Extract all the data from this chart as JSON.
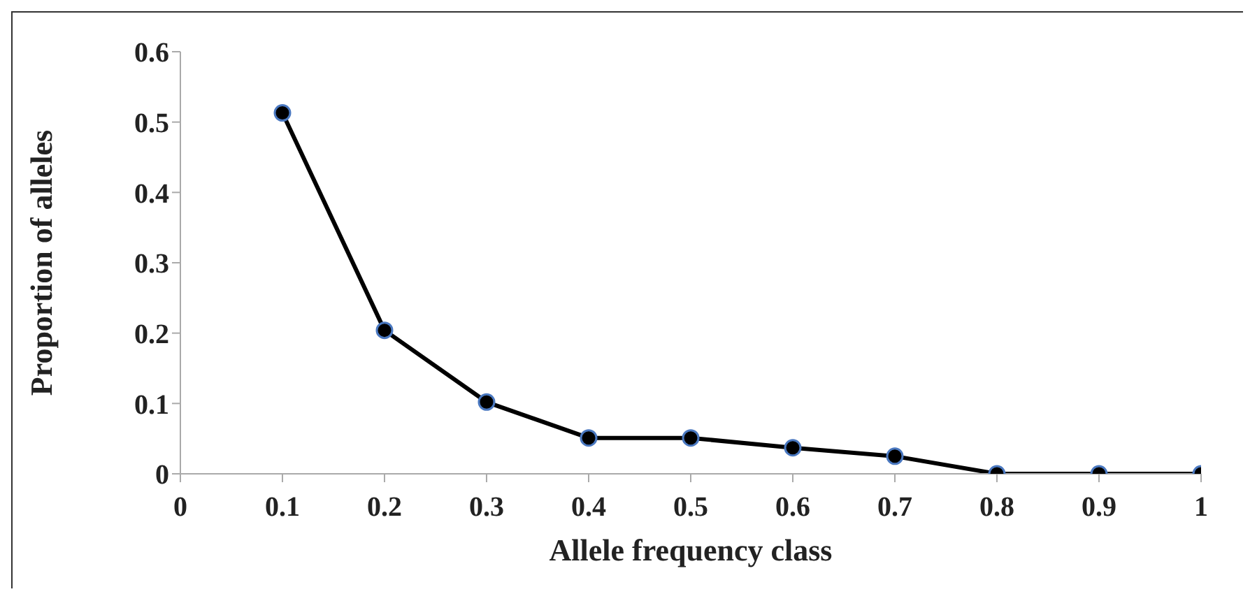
{
  "chart_data": {
    "type": "line",
    "xlabel": "Allele frequency class",
    "ylabel": "Proportion of alleles",
    "x": [
      0.1,
      0.2,
      0.3,
      0.4,
      0.5,
      0.6,
      0.7,
      0.8,
      0.9,
      1
    ],
    "series": [
      {
        "color": "#000000",
        "values": [
          0.513,
          0.204,
          0.102,
          0.051,
          0.051,
          0.037,
          0.025,
          0,
          0,
          0
        ]
      }
    ],
    "xlim": [
      0,
      1
    ],
    "xticks": [
      0,
      0.1,
      0.2,
      0.3,
      0.4,
      0.5,
      0.6,
      0.7,
      0.8,
      0.9,
      1
    ],
    "ylim": [
      0,
      0.6
    ],
    "yticks": [
      0,
      0.1,
      0.2,
      0.3,
      0.4,
      0.5,
      0.6
    ],
    "grid": false,
    "legend": false,
    "marker": "circle",
    "line_style": "solid"
  }
}
